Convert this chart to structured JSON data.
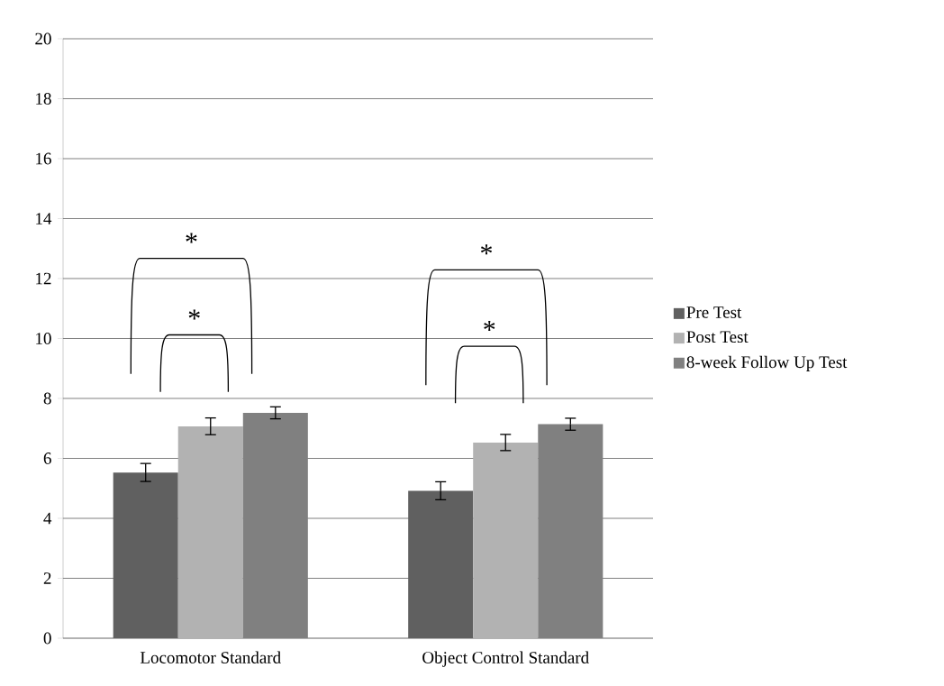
{
  "chart_data": {
    "type": "bar",
    "categories": [
      "Locomotor Standard",
      "Object Control Standard"
    ],
    "series": [
      {
        "name": "Pre Test",
        "color": "#606060",
        "values": [
          5.53,
          4.92
        ],
        "errors": [
          0.3,
          0.3
        ]
      },
      {
        "name": "Post Test",
        "color": "#b2b2b2",
        "values": [
          7.07,
          6.53
        ],
        "errors": [
          0.28,
          0.27
        ]
      },
      {
        "name": "8-week Follow Up Test",
        "color": "#808080",
        "values": [
          7.52,
          7.14
        ],
        "errors": [
          0.2,
          0.2
        ]
      }
    ],
    "ylim": [
      0,
      20
    ],
    "yticks": [
      0,
      2,
      4,
      6,
      8,
      10,
      12,
      14,
      16,
      18,
      20
    ],
    "grid": "y",
    "legend": "right",
    "annotations": [
      "*",
      "*",
      "*",
      "*"
    ]
  }
}
